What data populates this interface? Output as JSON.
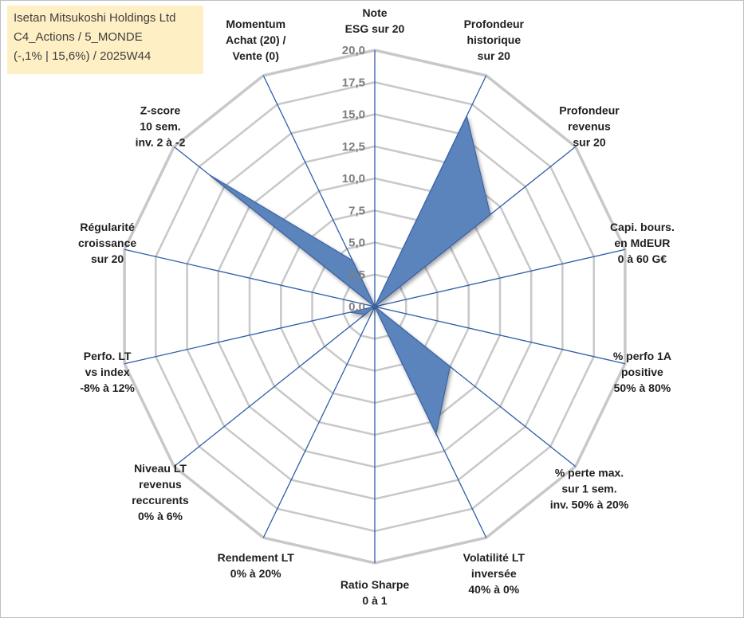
{
  "info": {
    "line1": "Isetan Mitsukoshi Holdings Ltd",
    "line2": "C4_Actions / 5_MONDE",
    "line3": "(-,1% | 15,6%) / 2025W44"
  },
  "chart_data": {
    "type": "radar",
    "rmin": 0,
    "rmax": 20,
    "ticks": [
      "0,0",
      "2,5",
      "5,0",
      "7,5",
      "10,0",
      "12,5",
      "15,0",
      "17,5",
      "20,0"
    ],
    "axes": [
      [
        "Note",
        "ESG sur 20"
      ],
      [
        "Profondeur",
        "historique",
        "sur 20"
      ],
      [
        "Profondeur",
        "revenus",
        "sur 20"
      ],
      [
        "Capi. bours.",
        "en MdEUR",
        "0 à 60 G€"
      ],
      [
        "% perfo 1A",
        "positive",
        "50% à 80%"
      ],
      [
        "% perte max.",
        "sur 1 sem.",
        "inv. 50% à 20%"
      ],
      [
        "Volatilité LT",
        "inversée",
        "40% à 0%"
      ],
      [
        "Ratio Sharpe",
        "0 à 1"
      ],
      [
        "Rendement LT",
        "0% à 20%"
      ],
      [
        "Niveau LT",
        "revenus",
        "reccurents",
        "0% à 6%"
      ],
      [
        "Perfo. LT",
        "vs index",
        "-8% à 12%"
      ],
      [
        "Régularité",
        "croissance",
        "sur 20"
      ],
      [
        "Z-score",
        "10 sem.",
        "inv. 2 à -2"
      ],
      [
        "Momentum",
        "Achat (20) /",
        "Vente (0)"
      ]
    ],
    "values": [
      0,
      16.5,
      11.5,
      0,
      0,
      7.5,
      11,
      0,
      0,
      1,
      2,
      0,
      16.5,
      4
    ],
    "grid": true,
    "colors": {
      "fill": "#5b84bc",
      "stroke": "#3b64a6",
      "spoke": "#2f5ea8",
      "grid": "#c8c8c8"
    }
  }
}
